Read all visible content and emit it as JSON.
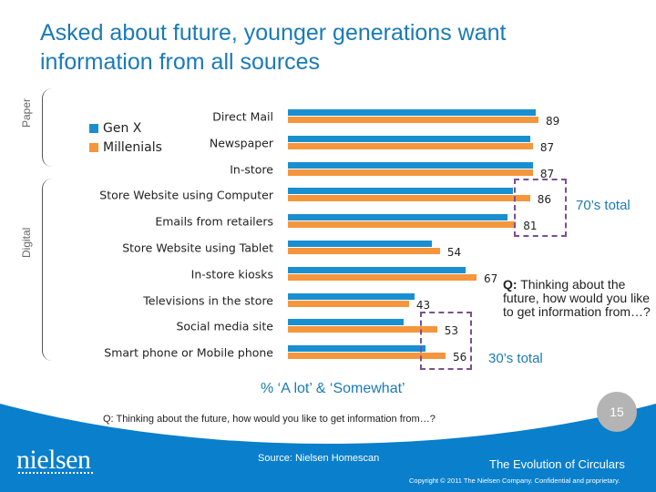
{
  "title": "Asked about future, younger generations want information from all sources",
  "group_labels": {
    "paper": "Paper",
    "digital": "Digital"
  },
  "annotations": {
    "seventies_total": "70’s total",
    "thirties_total": "30’s total",
    "question_bold": "Q:",
    "question_text": " Thinking about the future, how would you like to get information from…?",
    "measure": "% ‘A lot’ & ‘Somewhat’"
  },
  "footer": {
    "question": "Q: Thinking about the future, how would you like to get information from…?",
    "source": "Source:  Nielsen Homescan",
    "deck_title": "The Evolution of Circulars",
    "copyright": "Copyright © 2011 The Nielsen Company. Confidential and proprietary.",
    "page_number": "15",
    "logo": "nielsen"
  },
  "colors": {
    "gen_x": "#1a8fd0",
    "millenials": "#f5963c",
    "title": "#1a7ab8",
    "footer_blue": "#0a7fcc",
    "highlight_box": "#7d4f8f"
  },
  "chart_data": {
    "type": "bar",
    "orientation": "horizontal",
    "categories": [
      "Direct Mail",
      "Newspaper",
      "In-store",
      "Store Website using Computer",
      "Emails from retailers",
      "Store Website using Tablet",
      "In-store kiosks",
      "Televisions in the store",
      "Social media site",
      "Smart phone or Mobile phone"
    ],
    "series": [
      {
        "name": "Gen X",
        "color": "#1a8fd0",
        "values": [
          88,
          86,
          87,
          80,
          78,
          51,
          63,
          45,
          41,
          49
        ]
      },
      {
        "name": "Millenials",
        "color": "#f5963c",
        "values": [
          89,
          87,
          87,
          86,
          81,
          54,
          67,
          43,
          53,
          56
        ],
        "labeled": true
      }
    ],
    "xlim": [
      0,
      100
    ],
    "legend": "top-left",
    "grid": false,
    "xlabel": "% ‘A lot’ & ‘Somewhat’"
  }
}
